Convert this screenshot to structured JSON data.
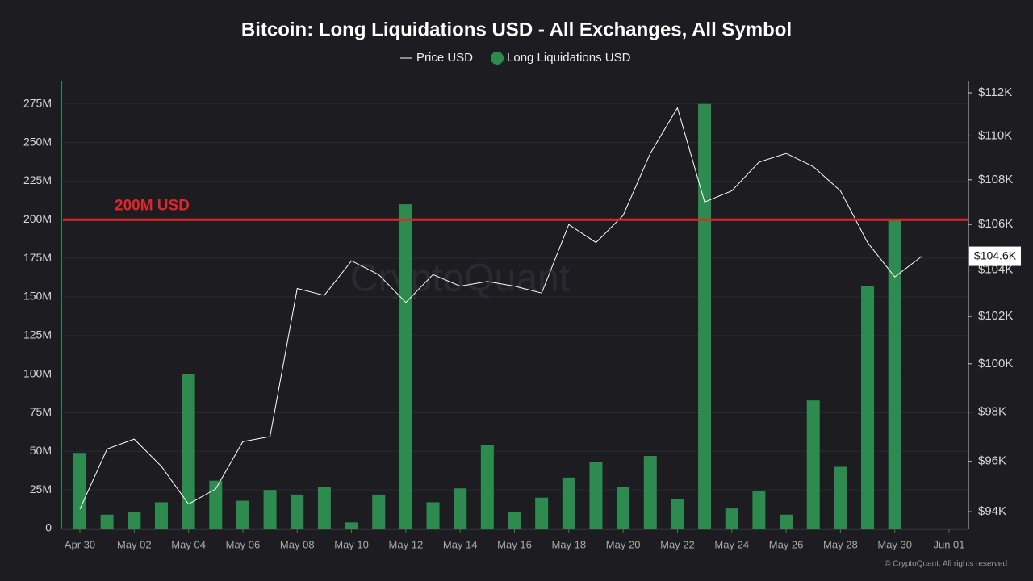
{
  "chart_data": {
    "type": "bar_line",
    "title": "Bitcoin: Long Liquidations USD - All Exchanges, All Symbol",
    "categories": [
      "Apr 30",
      null,
      "May 02",
      null,
      "May 04",
      null,
      "May 06",
      null,
      "May 08",
      null,
      "May 10",
      null,
      "May 12",
      null,
      "May 14",
      null,
      "May 16",
      null,
      "May 18",
      null,
      "May 20",
      null,
      "May 22",
      null,
      "May 24",
      null,
      "May 26",
      null,
      "May 28",
      null,
      "May 30",
      null,
      "Jun 01"
    ],
    "series": [
      {
        "name": "Price USD",
        "type": "line",
        "axis": "y2",
        "color": "#ffffff",
        "values": [
          94.1,
          96.5,
          96.9,
          95.8,
          94.3,
          94.9,
          96.8,
          97.0,
          103.2,
          102.9,
          104.4,
          103.8,
          102.6,
          103.8,
          103.3,
          103.5,
          103.3,
          103.0,
          106.0,
          105.2,
          106.4,
          109.2,
          111.3,
          107.0,
          107.5,
          108.8,
          109.2,
          108.6,
          107.5,
          105.2,
          103.7,
          104.6,
          null
        ],
        "last_label": "$104.6K"
      },
      {
        "name": "Long Liquidations USD",
        "type": "bar",
        "color": "#2e8b50",
        "values": [
          49,
          9,
          11,
          17,
          100,
          31,
          18,
          25,
          22,
          27,
          4,
          22,
          210,
          17,
          26,
          54,
          11,
          20,
          33,
          43,
          27,
          47,
          19,
          275,
          13,
          24,
          9,
          83,
          40,
          157,
          200,
          null,
          null
        ]
      }
    ],
    "ylim": [
      0,
      290
    ],
    "yticks": [
      0,
      {
        "value": 25,
        "label": "25M"
      },
      {
        "value": 50,
        "label": "50M"
      },
      {
        "value": 75,
        "label": "75M"
      },
      {
        "value": 100,
        "label": "100M"
      },
      {
        "value": 125,
        "label": "125M"
      },
      {
        "value": 150,
        "label": "150M"
      },
      {
        "value": 175,
        "label": "175M"
      },
      {
        "value": 200,
        "label": "200M"
      },
      {
        "value": 225,
        "label": "225M"
      },
      {
        "value": 250,
        "label": "250M"
      },
      {
        "value": 275,
        "label": "275M"
      }
    ],
    "y2lim": [
      93.34,
      112.57
    ],
    "y2log": true,
    "y2ticks": [
      {
        "value": 94,
        "label": "$94K"
      },
      {
        "value": 96,
        "label": "$96K"
      },
      {
        "value": 98,
        "label": "$98K"
      },
      {
        "value": 100,
        "label": "$100K"
      },
      {
        "value": 102,
        "label": "$102K"
      },
      {
        "value": 104,
        "label": "$104K"
      },
      {
        "value": 106,
        "label": "$106K"
      },
      {
        "value": 108,
        "label": "$108K"
      },
      {
        "value": 110,
        "label": "$110K"
      },
      {
        "value": 112,
        "label": "$112K"
      }
    ],
    "grid": true,
    "reference_line": {
      "value": 200,
      "label": "200M USD",
      "color": "#e0262b"
    },
    "watermark": "CryptoQuant",
    "footer": "© CryptoQuant. All rights reserved"
  }
}
